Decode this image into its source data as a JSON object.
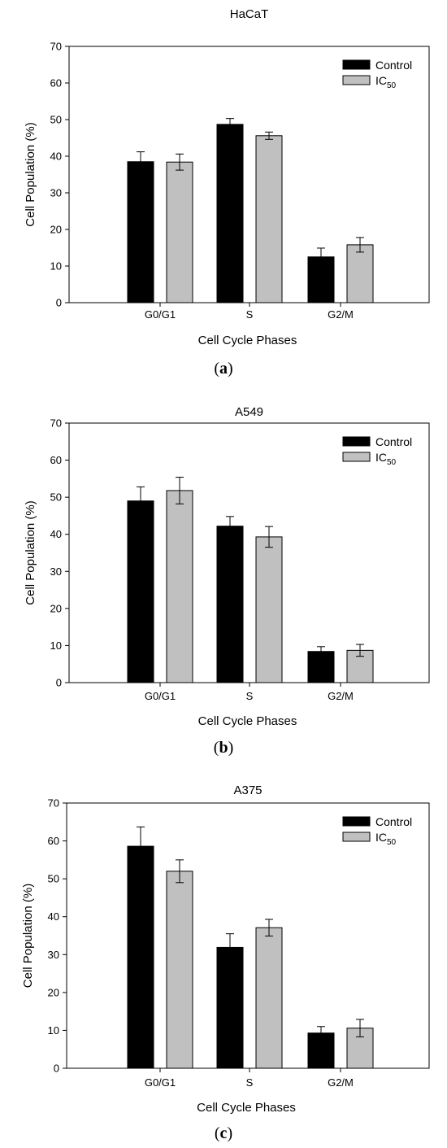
{
  "chart_data": [
    {
      "type": "bar",
      "title": "HaCaT",
      "panel_label": "a",
      "xlabel": "Cell Cycle Phases",
      "ylabel": "Cell Population (%)",
      "ylim": [
        0,
        70
      ],
      "yticks": [
        0,
        10,
        20,
        30,
        40,
        50,
        60,
        70
      ],
      "categories": [
        "G0/G1",
        "S",
        "G2/M"
      ],
      "legend_position": "top-right",
      "series": [
        {
          "name": "Control",
          "color": "#000000",
          "values": [
            38.5,
            48.7,
            12.5
          ],
          "errors": [
            2.7,
            1.6,
            2.4
          ]
        },
        {
          "name": "IC50",
          "name_main": "IC",
          "name_sub": "50",
          "color": "#c0c0c0",
          "values": [
            38.4,
            45.6,
            15.8
          ],
          "errors": [
            2.2,
            1.0,
            2.0
          ]
        }
      ]
    },
    {
      "type": "bar",
      "title": "A549",
      "panel_label": "b",
      "xlabel": "Cell Cycle Phases",
      "ylabel": "Cell Population (%)",
      "ylim": [
        0,
        70
      ],
      "yticks": [
        0,
        10,
        20,
        30,
        40,
        50,
        60,
        70
      ],
      "categories": [
        "G0/G1",
        "S",
        "G2/M"
      ],
      "legend_position": "top-right",
      "series": [
        {
          "name": "Control",
          "color": "#000000",
          "values": [
            49.0,
            42.2,
            8.4
          ],
          "errors": [
            3.8,
            2.6,
            1.3
          ]
        },
        {
          "name": "IC50",
          "name_main": "IC",
          "name_sub": "50",
          "color": "#c0c0c0",
          "values": [
            51.8,
            39.3,
            8.7
          ],
          "errors": [
            3.6,
            2.8,
            1.6
          ]
        }
      ]
    },
    {
      "type": "bar",
      "title": "A375",
      "panel_label": "c",
      "xlabel": "Cell Cycle Phases",
      "ylabel": "Cell Population (%)",
      "ylim": [
        0,
        70
      ],
      "yticks": [
        0,
        10,
        20,
        30,
        40,
        50,
        60,
        70
      ],
      "categories": [
        "G0/G1",
        "S",
        "G2/M"
      ],
      "legend_position": "top-right",
      "series": [
        {
          "name": "Control",
          "color": "#000000",
          "values": [
            58.6,
            31.9,
            9.3
          ],
          "errors": [
            5.1,
            3.6,
            1.7
          ]
        },
        {
          "name": "IC50",
          "name_main": "IC",
          "name_sub": "50",
          "color": "#c0c0c0",
          "values": [
            52.0,
            37.1,
            10.6
          ],
          "errors": [
            3.0,
            2.2,
            2.3
          ]
        }
      ]
    }
  ]
}
